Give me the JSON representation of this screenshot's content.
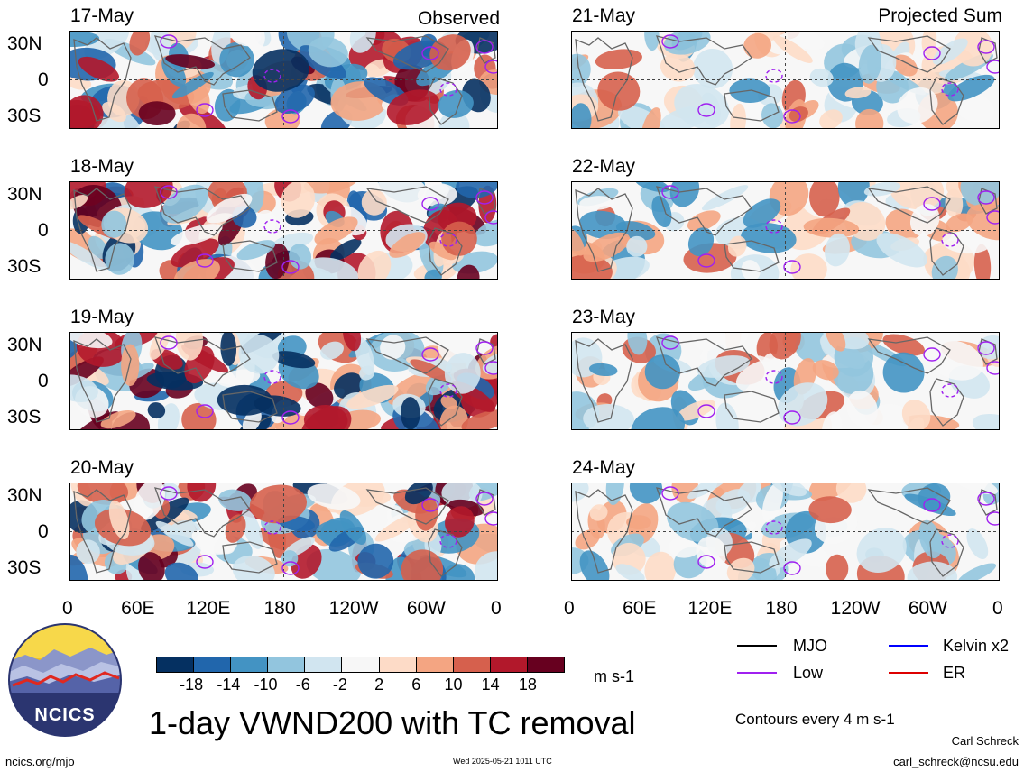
{
  "observed": {
    "title": "Observed",
    "dates": [
      "17-May",
      "18-May",
      "19-May",
      "20-May"
    ]
  },
  "projected": {
    "title": "Projected Sum",
    "dates": [
      "21-May",
      "22-May",
      "23-May",
      "24-May"
    ]
  },
  "lat_labels": [
    "30N",
    "0",
    "30S"
  ],
  "lon_labels": [
    "0",
    "60E",
    "120E",
    "180",
    "120W",
    "60W",
    "0"
  ],
  "colorbar": {
    "labels": [
      "-18",
      "-14",
      "-10",
      "-6",
      "-2",
      "2",
      "6",
      "10",
      "14",
      "18"
    ],
    "colors": [
      "#053061",
      "#2166ac",
      "#4393c3",
      "#92c5de",
      "#d1e5f0",
      "#f7f7f7",
      "#fddbc7",
      "#f4a582",
      "#d6604d",
      "#b2182b",
      "#67001f"
    ],
    "units": "m s-1"
  },
  "title": "1-day VWND200 with TC removal",
  "legend": [
    {
      "label": "MJO",
      "color": "#000000"
    },
    {
      "label": "Kelvin x2",
      "color": "#0000ff"
    },
    {
      "label": "Low",
      "color": "#a020f0"
    },
    {
      "label": "ER",
      "color": "#dd0000"
    }
  ],
  "contours_note": "Contours every 4 m s-1",
  "footer": {
    "website": "ncics.org/mjo",
    "timestamp": "Wed 2025-05-21 1011 UTC",
    "author": "Carl Schreck",
    "email": "carl_schreck@ncsu.edu"
  },
  "logo": {
    "text": "NCICS"
  }
}
